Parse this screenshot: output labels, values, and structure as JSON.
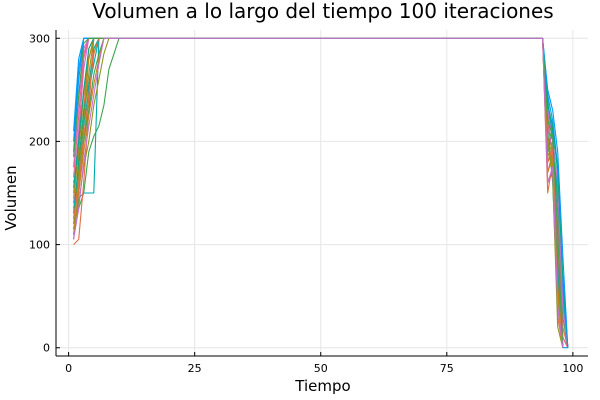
{
  "chart_data": {
    "type": "line",
    "title": "Volumen a lo largo del tiempo 100 iteraciones",
    "xlabel": "Tiempo",
    "ylabel": "Volumen",
    "xlim": [
      -2.5,
      103
    ],
    "ylim": [
      -8,
      308
    ],
    "xticks": [
      0,
      25,
      50,
      75,
      100
    ],
    "yticks": [
      0,
      100,
      200,
      300
    ],
    "grid": true,
    "legend": "none",
    "colors": [
      "#009AFA",
      "#E36F47",
      "#3EA44E",
      "#C371D2",
      "#AC8D18",
      "#00A9AD",
      "#ED5E93",
      "#C68225",
      "#00A98D",
      "#8E971E"
    ],
    "series": [
      {
        "x": [
          1,
          2,
          3,
          4,
          94,
          95,
          96,
          97,
          98,
          99
        ],
        "values": [
          190,
          260,
          300,
          300,
          300,
          230,
          210,
          120,
          0,
          0
        ]
      },
      {
        "x": [
          1,
          2,
          3,
          4,
          5,
          94,
          95,
          96,
          97,
          98,
          99
        ],
        "values": [
          105,
          160,
          230,
          290,
          300,
          300,
          180,
          190,
          110,
          20,
          0
        ]
      },
      {
        "x": [
          1,
          2,
          3,
          4,
          5,
          6,
          7,
          8,
          9,
          10,
          94,
          95,
          96,
          97,
          98,
          99
        ],
        "values": [
          120,
          135,
          150,
          190,
          205,
          215,
          235,
          270,
          285,
          300,
          300,
          220,
          210,
          140,
          30,
          0
        ]
      },
      {
        "x": [
          1,
          2,
          3,
          4,
          94,
          95,
          96,
          97,
          98
        ],
        "values": [
          150,
          210,
          270,
          300,
          300,
          200,
          195,
          90,
          0
        ]
      },
      {
        "x": [
          1,
          2,
          3,
          4,
          5,
          6,
          94,
          95,
          96,
          97,
          98
        ],
        "values": [
          115,
          150,
          200,
          240,
          285,
          300,
          300,
          160,
          170,
          60,
          0
        ]
      },
      {
        "x": [
          1,
          2,
          3,
          4,
          5,
          6,
          94,
          95,
          96,
          97,
          98,
          99
        ],
        "values": [
          110,
          145,
          150,
          150,
          150,
          300,
          300,
          240,
          205,
          150,
          50,
          0
        ]
      },
      {
        "x": [
          1,
          2,
          3,
          4,
          94,
          95,
          96,
          97,
          98
        ],
        "values": [
          140,
          200,
          280,
          300,
          300,
          170,
          190,
          80,
          0
        ]
      },
      {
        "x": [
          1,
          2,
          3,
          4,
          5,
          94,
          95,
          96,
          97,
          98,
          99
        ],
        "values": [
          125,
          175,
          220,
          280,
          300,
          300,
          225,
          180,
          100,
          10,
          0
        ]
      },
      {
        "x": [
          1,
          2,
          3,
          4,
          5,
          6,
          94,
          95,
          96,
          97,
          98
        ],
        "values": [
          130,
          180,
          230,
          255,
          290,
          300,
          300,
          210,
          160,
          40,
          0
        ]
      },
      {
        "x": [
          1,
          2,
          3,
          4,
          5,
          6,
          7,
          8,
          94,
          95,
          96,
          97,
          98
        ],
        "values": [
          115,
          140,
          175,
          200,
          235,
          260,
          285,
          300,
          300,
          185,
          200,
          70,
          0
        ]
      },
      {
        "x": [
          1,
          2,
          3,
          94,
          95,
          96,
          97,
          98,
          99
        ],
        "values": [
          210,
          280,
          300,
          300,
          245,
          220,
          175,
          60,
          0
        ]
      },
      {
        "x": [
          1,
          2,
          3,
          4,
          5,
          94,
          95,
          96,
          97,
          98
        ],
        "values": [
          100,
          105,
          160,
          230,
          300,
          300,
          150,
          180,
          30,
          0
        ]
      },
      {
        "x": [
          1,
          2,
          3,
          4,
          5,
          6,
          7,
          94,
          95,
          96,
          97,
          98
        ],
        "values": [
          160,
          185,
          200,
          230,
          265,
          285,
          300,
          300,
          195,
          215,
          90,
          0
        ]
      },
      {
        "x": [
          1,
          2,
          3,
          4,
          94,
          95,
          96,
          97,
          98,
          99
        ],
        "values": [
          175,
          240,
          290,
          300,
          300,
          230,
          200,
          160,
          40,
          0
        ]
      },
      {
        "x": [
          1,
          2,
          3,
          4,
          5,
          94,
          95,
          96,
          97,
          98
        ],
        "values": [
          145,
          190,
          245,
          280,
          300,
          300,
          205,
          175,
          50,
          0
        ]
      },
      {
        "x": [
          1,
          2,
          3,
          4,
          5,
          6,
          94,
          95,
          96,
          97,
          98
        ],
        "values": [
          135,
          165,
          215,
          250,
          275,
          300,
          300,
          190,
          210,
          80,
          0
        ]
      },
      {
        "x": [
          1,
          2,
          3,
          4,
          94,
          95,
          96,
          97,
          98,
          99
        ],
        "values": [
          165,
          225,
          285,
          300,
          300,
          215,
          190,
          120,
          10,
          0
        ]
      },
      {
        "x": [
          1,
          2,
          3,
          4,
          5,
          6,
          7,
          94,
          95,
          96,
          97,
          98
        ],
        "values": [
          110,
          150,
          190,
          225,
          255,
          280,
          300,
          300,
          170,
          185,
          60,
          0
        ]
      },
      {
        "x": [
          1,
          2,
          3,
          4,
          5,
          94,
          95,
          96,
          97,
          98,
          99
        ],
        "values": [
          155,
          200,
          250,
          290,
          300,
          300,
          235,
          215,
          170,
          70,
          0
        ]
      },
      {
        "x": [
          1,
          2,
          3,
          4,
          5,
          94,
          95,
          96,
          97,
          98
        ],
        "values": [
          120,
          170,
          220,
          265,
          300,
          300,
          200,
          165,
          20,
          0
        ]
      },
      {
        "x": [
          1,
          2,
          3,
          94,
          95,
          96,
          97,
          98,
          99
        ],
        "values": [
          200,
          270,
          300,
          300,
          250,
          230,
          190,
          90,
          0
        ]
      },
      {
        "x": [
          1,
          2,
          3,
          4,
          5,
          6,
          94,
          95,
          96,
          97,
          98
        ],
        "values": [
          125,
          160,
          205,
          245,
          285,
          300,
          300,
          180,
          195,
          100,
          0
        ]
      },
      {
        "x": [
          1,
          2,
          3,
          4,
          94,
          95,
          96,
          97,
          98
        ],
        "values": [
          185,
          245,
          295,
          300,
          300,
          220,
          205,
          110,
          0
        ]
      },
      {
        "x": [
          1,
          2,
          3,
          4,
          5,
          6,
          7,
          94,
          95,
          96,
          97,
          98
        ],
        "values": [
          105,
          135,
          180,
          215,
          245,
          275,
          300,
          300,
          160,
          175,
          40,
          0
        ]
      }
    ]
  }
}
